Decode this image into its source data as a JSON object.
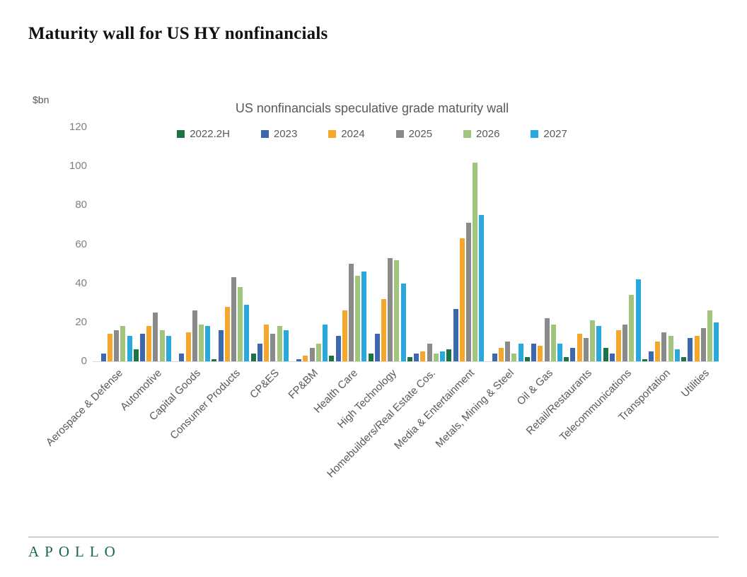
{
  "header": {
    "title": "Maturity wall for US HY nonfinancials"
  },
  "chart_data": {
    "type": "bar",
    "title": "US nonfinancials speculative grade maturity wall",
    "ylabel": "$bn",
    "xlabel": "",
    "ylim": [
      0,
      120
    ],
    "yticks": [
      0,
      20,
      40,
      60,
      80,
      100,
      120
    ],
    "grid": false,
    "legend_position": "top",
    "categories": [
      "Aerospace & Defense",
      "Automotive",
      "Capital Goods",
      "Consumer Products",
      "CP&ES",
      "FP&BM",
      "Health Care",
      "High Technology",
      "Homebuilders/Real Estate Cos.",
      "Media & Entertainment",
      "Metals, Mining & Steel",
      "Oil & Gas",
      "Retail/Restaurants",
      "Telecommunications",
      "Transportation",
      "Utilities"
    ],
    "series": [
      {
        "name": "2022.2H",
        "color": "#1b7346",
        "values": [
          0,
          6,
          0,
          1,
          4,
          0,
          3,
          4,
          2,
          6,
          0,
          2,
          2,
          7,
          1,
          2
        ]
      },
      {
        "name": "2023",
        "color": "#3d68ae",
        "values": [
          4,
          14,
          4,
          16,
          9,
          1,
          13,
          14,
          4,
          27,
          4,
          9,
          7,
          4,
          5,
          12
        ]
      },
      {
        "name": "2024",
        "color": "#f6a62a",
        "values": [
          14,
          18,
          15,
          28,
          19,
          3,
          26,
          32,
          5,
          63,
          7,
          8,
          14,
          16,
          10,
          13
        ]
      },
      {
        "name": "2025",
        "color": "#8a8a8a",
        "values": [
          16,
          25,
          26,
          43,
          14,
          7,
          50,
          53,
          9,
          71,
          10,
          22,
          12,
          19,
          15,
          17
        ]
      },
      {
        "name": "2026",
        "color": "#a2c57e",
        "values": [
          18,
          16,
          19,
          38,
          18,
          9,
          44,
          52,
          4,
          102,
          4,
          19,
          21,
          34,
          13,
          26
        ]
      },
      {
        "name": "2027",
        "color": "#29a8dd",
        "values": [
          13,
          13,
          18,
          29,
          16,
          19,
          46,
          40,
          5,
          75,
          9,
          9,
          18,
          42,
          6,
          20
        ]
      }
    ]
  },
  "footer": {
    "logo": "APOLLO",
    "logo_color": "#156b45"
  }
}
